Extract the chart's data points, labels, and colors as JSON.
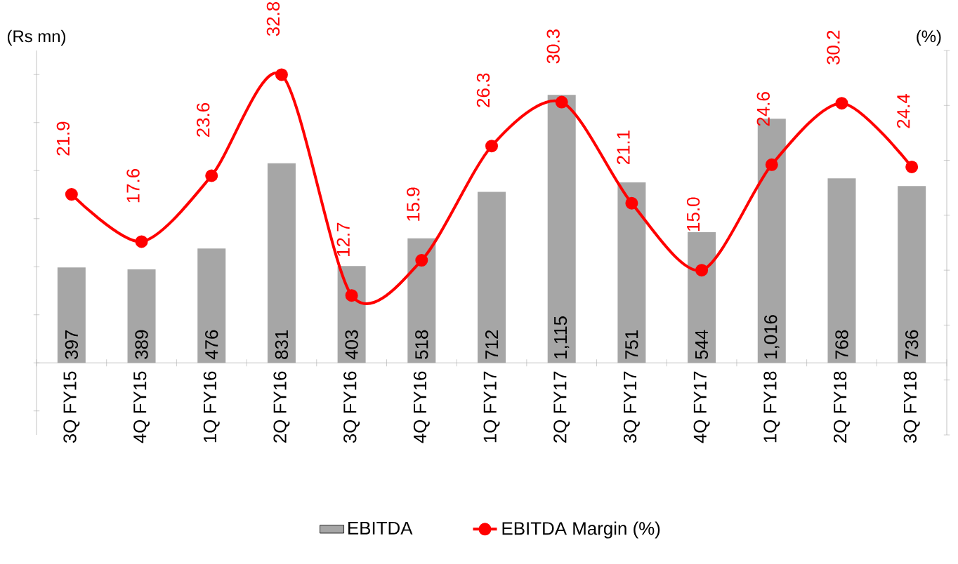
{
  "chart_data": {
    "type": "bar",
    "ylabel": "(Rs mn)",
    "y2label": "(%)",
    "categories": [
      "3Q FY15",
      "4Q FY15",
      "1Q FY16",
      "2Q FY16",
      "3Q FY16",
      "4Q FY16",
      "1Q FY17",
      "2Q FY17",
      "3Q FY17",
      "4Q FY17",
      "1Q FY18",
      "2Q FY18",
      "3Q FY18"
    ],
    "series": [
      {
        "name": "EBITDA",
        "color": "#a6a6a6",
        "values": [
          397,
          389,
          476,
          831,
          403,
          518,
          712,
          1115,
          751,
          544,
          1016,
          768,
          736
        ],
        "value_labels": [
          "397",
          "389",
          "476",
          "831",
          "403",
          "518",
          "712",
          "1,115",
          "751",
          "544",
          "1,016",
          "768",
          "736"
        ]
      },
      {
        "name": "EBITDA Margin (%)",
        "type": "line",
        "axis": "y2",
        "color": "#ff0000",
        "marker": "circle",
        "values": [
          21.9,
          17.6,
          23.6,
          32.8,
          12.7,
          15.9,
          26.3,
          30.3,
          21.1,
          15.0,
          24.6,
          30.2,
          24.4
        ],
        "value_labels": [
          "21.9",
          "17.6",
          "23.6",
          "32.8",
          "12.7",
          "15.9",
          "26.3",
          "30.3",
          "21.1",
          "15.0",
          "24.6",
          "30.2",
          "24.4"
        ]
      }
    ],
    "ylim": [
      -300,
      1300
    ],
    "y2lim": [
      0,
      35
    ],
    "tick_labels": "x",
    "legend": "bottom",
    "grid": false
  }
}
